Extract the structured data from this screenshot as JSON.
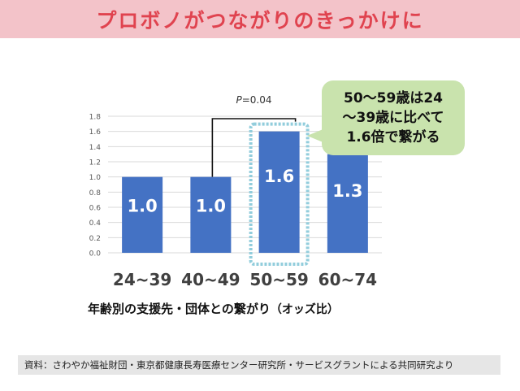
{
  "header": {
    "title": "プロボノがつながりのきっかけに"
  },
  "chart_data": {
    "type": "bar",
    "categories": [
      "24~39",
      "40~49",
      "50~59",
      "60~74"
    ],
    "values": [
      1.0,
      1.0,
      1.6,
      1.3
    ],
    "data_labels": [
      "1.0",
      "1.0",
      "1.6",
      "1.3"
    ],
    "yticks": [
      "0.0",
      "0.2",
      "0.4",
      "0.6",
      "0.8",
      "1.0",
      "1.2",
      "1.4",
      "1.6",
      "1.8"
    ],
    "ylim": [
      0,
      1.8
    ],
    "xlabel": "年齢別の支援先・団体との繋がり",
    "xlabel_suffix": "（オッズ比）",
    "bar_color": "#4472c4",
    "highlight_color": "#92cddc",
    "highlight_category": "50~59",
    "annotation": {
      "p_prefix": "P",
      "p_value": "=0.04",
      "compare": [
        "24~39",
        "50~59"
      ]
    },
    "callout_lines": [
      "50～59歳は24",
      "～39歳に比べて",
      "1.6倍で繋がる"
    ],
    "callout_color": "#c9e3ad"
  },
  "footnote": "資料：さわやか福祉財団・東京都健康長寿医療センター研究所・サービスグラントによる共同研究より"
}
